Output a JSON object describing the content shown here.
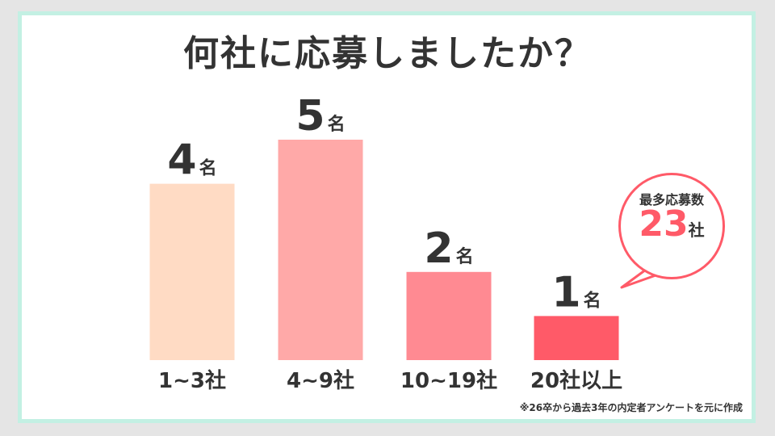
{
  "title": "何社に応募しましたか？",
  "chart_data": {
    "type": "bar",
    "categories": [
      "1~3社",
      "4~9社",
      "10~19社",
      "20社以上"
    ],
    "values": [
      4,
      5,
      2,
      1
    ],
    "value_unit": "名",
    "colors": [
      "#ffdbc4",
      "#ffa9a8",
      "#ff8a92",
      "#ff5a68"
    ],
    "ylim": [
      0,
      5
    ]
  },
  "callout": {
    "label": "最多応募数",
    "value": "23",
    "unit": "社",
    "border_color": "#ff5a68"
  },
  "footnote": "※26卒から過去3年の内定者アンケートを元に作成"
}
